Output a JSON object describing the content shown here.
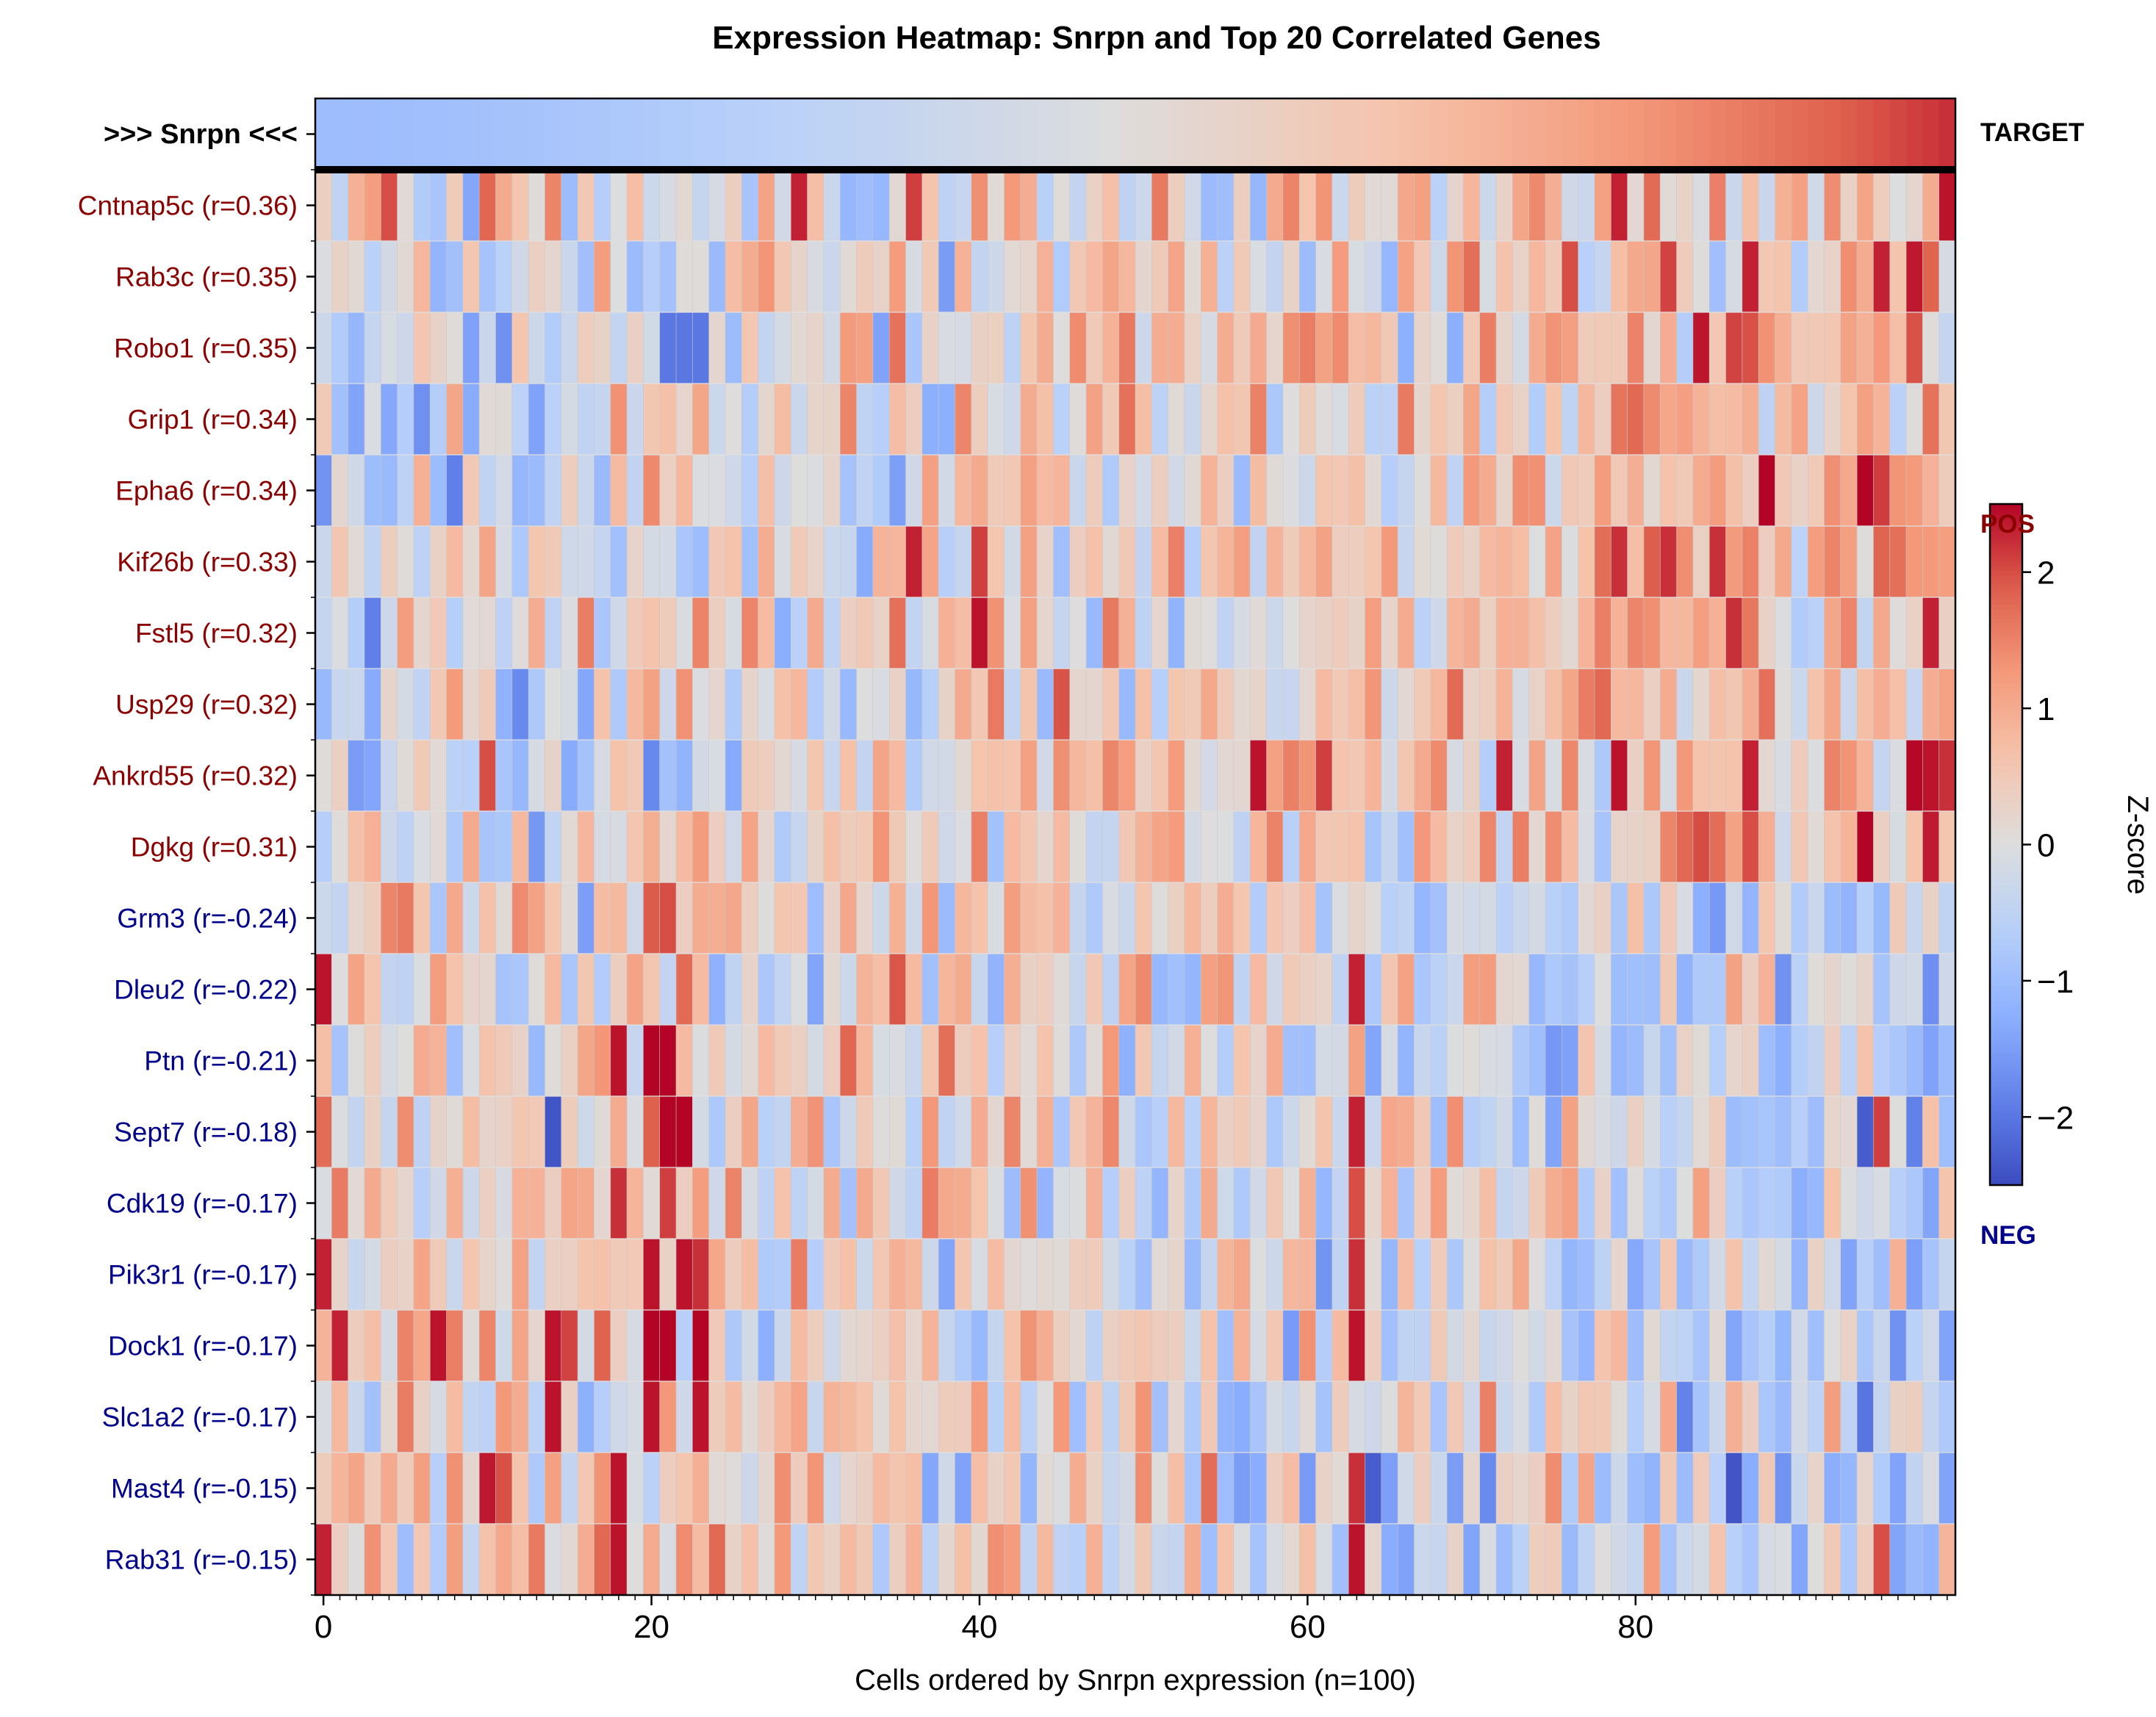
{
  "chart_data": {
    "type": "heatmap",
    "title": "Expression Heatmap: Snrpn and Top 20 Correlated Genes",
    "xlabel": "Cells ordered by Snrpn expression (n=100)",
    "x_ticks": [
      0,
      20,
      40,
      60,
      80
    ],
    "n_cells": 100,
    "xlim": [
      -0.5,
      99.5
    ],
    "target": {
      "label": ">>> Snrpn <<<",
      "side_label": "TARGET"
    },
    "rows": [
      {
        "label": "Cntnap5c (r=0.36)",
        "group": "pos"
      },
      {
        "label": "Rab3c (r=0.35)",
        "group": "pos"
      },
      {
        "label": "Robo1 (r=0.35)",
        "group": "pos"
      },
      {
        "label": "Grip1 (r=0.34)",
        "group": "pos"
      },
      {
        "label": "Epha6 (r=0.34)",
        "group": "pos"
      },
      {
        "label": "Kif26b (r=0.33)",
        "group": "pos"
      },
      {
        "label": "Fstl5 (r=0.32)",
        "group": "pos"
      },
      {
        "label": "Usp29 (r=0.32)",
        "group": "pos"
      },
      {
        "label": "Ankrd55 (r=0.32)",
        "group": "pos"
      },
      {
        "label": "Dgkg (r=0.31)",
        "group": "pos"
      },
      {
        "label": "Grm3 (r=-0.24)",
        "group": "neg"
      },
      {
        "label": "Dleu2 (r=-0.22)",
        "group": "neg"
      },
      {
        "label": "Ptn (r=-0.21)",
        "group": "neg"
      },
      {
        "label": "Sept7 (r=-0.18)",
        "group": "neg"
      },
      {
        "label": "Cdk19 (r=-0.17)",
        "group": "neg"
      },
      {
        "label": "Pik3r1 (r=-0.17)",
        "group": "neg"
      },
      {
        "label": "Dock1 (r=-0.17)",
        "group": "neg"
      },
      {
        "label": "Slc1a2 (r=-0.17)",
        "group": "neg"
      },
      {
        "label": "Mast4 (r=-0.15)",
        "group": "neg"
      },
      {
        "label": "Rab31 (r=-0.15)",
        "group": "neg"
      }
    ],
    "colorbar": {
      "label": "Z-score",
      "vmin": -2.5,
      "vmax": 2.5,
      "ticks": [
        -2,
        -1,
        0,
        1,
        2
      ],
      "colormap": "coolwarm"
    },
    "group_labels": {
      "pos": "POS",
      "neg": "NEG"
    },
    "colors": {
      "pos": "#8b0000",
      "neg": "#00008b",
      "text": "#000000",
      "grid": "#c8c8c8"
    },
    "target_range": [
      -1.0,
      2.2
    ],
    "row_means": {
      "pos": [
        [
          -1,
          -0.3
        ],
        [
          30,
          0.1
        ],
        [
          60,
          0.4
        ],
        [
          80,
          0.7
        ],
        [
          100,
          0.8
        ]
      ],
      "neg": [
        [
          -1,
          0.5
        ],
        [
          30,
          0.3
        ],
        [
          60,
          0.0
        ],
        [
          80,
          -0.3
        ],
        [
          100,
          -0.5
        ]
      ]
    },
    "hot_cells": [
      [
        0,
        4,
        2.0
      ],
      [
        0,
        10,
        1.8
      ],
      [
        0,
        29,
        2.3
      ],
      [
        0,
        36,
        2.1
      ],
      [
        0,
        79,
        2.3
      ],
      [
        0,
        99,
        2.4
      ],
      [
        1,
        87,
        2.3
      ],
      [
        1,
        95,
        2.3
      ],
      [
        5,
        36,
        2.3
      ],
      [
        5,
        40,
        2.1
      ],
      [
        5,
        79,
        2.2
      ],
      [
        5,
        82,
        2.2
      ],
      [
        5,
        85,
        2.2
      ],
      [
        6,
        40,
        2.4
      ],
      [
        6,
        86,
        2.2
      ],
      [
        6,
        98,
        2.3
      ],
      [
        8,
        10,
        2.0
      ],
      [
        8,
        57,
        2.4
      ],
      [
        8,
        61,
        2.1
      ],
      [
        8,
        72,
        2.3
      ],
      [
        8,
        79,
        2.4
      ],
      [
        8,
        87,
        2.3
      ],
      [
        8,
        98,
        2.4
      ],
      [
        8,
        99,
        2.2
      ],
      [
        9,
        87,
        2.0
      ],
      [
        10,
        20,
        1.9
      ],
      [
        10,
        21,
        2.0
      ],
      [
        11,
        0,
        2.4
      ],
      [
        11,
        63,
        2.3
      ],
      [
        12,
        18,
        2.4
      ],
      [
        12,
        20,
        2.5
      ],
      [
        12,
        21,
        2.5
      ],
      [
        13,
        21,
        2.5
      ],
      [
        13,
        22,
        2.5
      ],
      [
        13,
        63,
        2.3
      ],
      [
        13,
        95,
        2.1
      ],
      [
        14,
        18,
        2.2
      ],
      [
        14,
        21,
        2.1
      ],
      [
        14,
        63,
        2.0
      ],
      [
        15,
        0,
        2.3
      ],
      [
        15,
        20,
        2.4
      ],
      [
        15,
        22,
        2.4
      ],
      [
        15,
        23,
        2.2
      ],
      [
        15,
        63,
        2.2
      ],
      [
        16,
        1,
        2.3
      ],
      [
        16,
        7,
        2.4
      ],
      [
        16,
        14,
        2.4
      ],
      [
        16,
        20,
        2.5
      ],
      [
        16,
        21,
        2.5
      ],
      [
        16,
        23,
        2.5
      ],
      [
        16,
        63,
        2.4
      ],
      [
        17,
        14,
        2.4
      ],
      [
        17,
        20,
        2.4
      ],
      [
        17,
        23,
        2.4
      ],
      [
        18,
        18,
        2.4
      ],
      [
        18,
        63,
        2.2
      ],
      [
        19,
        0,
        2.3
      ],
      [
        19,
        18,
        2.4
      ],
      [
        19,
        63,
        2.4
      ],
      [
        19,
        95,
        2.0
      ]
    ],
    "cold_cells": [
      [
        2,
        21,
        -2.0
      ],
      [
        2,
        22,
        -2.0
      ],
      [
        2,
        23,
        -2.0
      ],
      [
        13,
        14,
        -2.4
      ],
      [
        18,
        86,
        -2.4
      ],
      [
        18,
        64,
        -2.3
      ],
      [
        13,
        94,
        -2.3
      ]
    ]
  }
}
